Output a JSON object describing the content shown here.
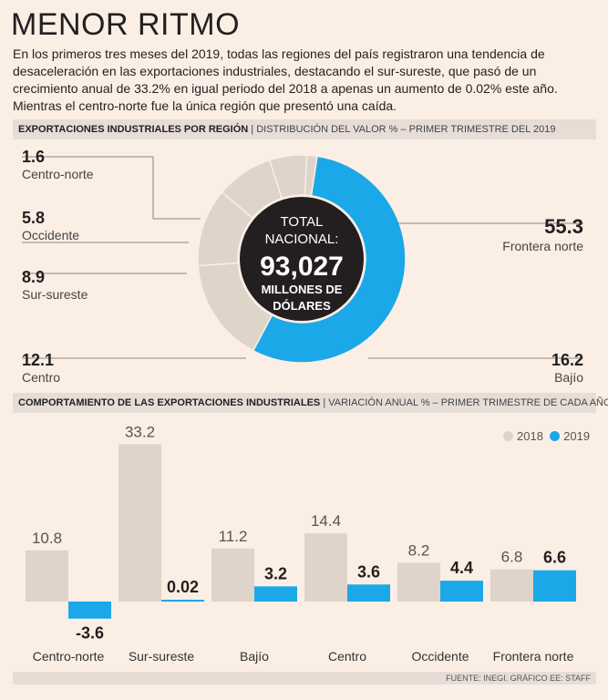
{
  "title": "MENOR RITMO",
  "intro": "En los primeros tres meses del 2019, todas las regiones del país registraron una tendencia de desaceleración en las exportaciones industriales, destacando el sur-sureste, que pasó de un crecimiento anual de 33.2% en igual periodo del 2018 a apenas un aumento de 0.02% este año. Mientras el centro-norte fue la única región que presentó una caída.",
  "section1": {
    "heading": "EXPORTACIONES INDUSTRIALES POR REGIÓN",
    "subheading": "DISTRIBUCIÓN DEL VALOR % – PRIMER TRIMESTRE DEL 2019"
  },
  "section2": {
    "heading": "COMPORTAMIENTO DE LAS EXPORTACIONES INDUSTRIALES",
    "subheading": "VARIACIÓN ANUAL % – PRIMER TRIMESTRE DE CADA AÑO"
  },
  "center": {
    "line1": "TOTAL",
    "line2": "NACIONAL:",
    "value": "93,027",
    "line3": "MILLONES DE",
    "line4": "DÓLARES"
  },
  "legend": {
    "a": "2018",
    "b": "2019"
  },
  "source": "FUENTE: INEGI. GRÁFICO EE: STAFF",
  "colors": {
    "blue": "#1ba8e8",
    "beige": "#dfd4ca",
    "dark": "#231f20"
  },
  "chart_data": [
    {
      "type": "pie",
      "title": "EXPORTACIONES INDUSTRIALES POR REGIÓN",
      "categories": [
        "Frontera norte",
        "Bajío",
        "Centro",
        "Sur-sureste",
        "Occidente",
        "Centro-norte"
      ],
      "values": [
        55.3,
        16.2,
        12.1,
        8.9,
        5.8,
        1.6
      ],
      "labels": [
        "55.3",
        "16.2",
        "12.1",
        "8.9",
        "5.8",
        "1.6"
      ]
    },
    {
      "type": "bar",
      "title": "COMPORTAMIENTO DE LAS EXPORTACIONES INDUSTRIALES",
      "categories": [
        "Centro-norte",
        "Sur-sureste",
        "Bajío",
        "Centro",
        "Occidente",
        "Frontera norte"
      ],
      "series": [
        {
          "name": "2018",
          "values": [
            10.8,
            33.2,
            11.2,
            14.4,
            8.2,
            6.8
          ],
          "labels": [
            "10.8",
            "33.2",
            "11.2",
            "14.4",
            "8.2",
            "6.8"
          ]
        },
        {
          "name": "2019",
          "values": [
            -3.6,
            0.02,
            3.2,
            3.6,
            4.4,
            6.6
          ],
          "labels": [
            "-3.6",
            "0.02",
            "3.2",
            "3.6",
            "4.4",
            "6.6"
          ]
        }
      ]
    }
  ]
}
